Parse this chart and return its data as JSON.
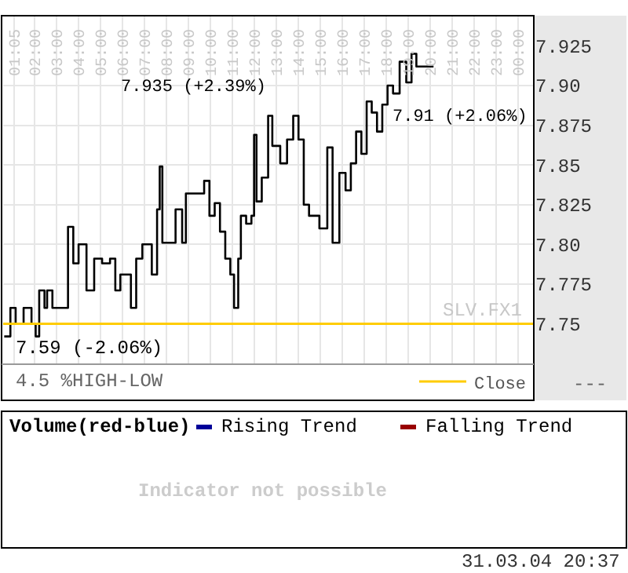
{
  "chart_data": [
    {
      "type": "step",
      "xlim": [
        0.57,
        24.7
      ],
      "ylim": [
        7.7245,
        7.944
      ],
      "xticks": [
        {
          "value": 1.0833,
          "label": "01:05"
        },
        {
          "value": 2,
          "label": "02:00"
        },
        {
          "value": 3,
          "label": "03:00"
        },
        {
          "value": 4,
          "label": "04:00"
        },
        {
          "value": 5,
          "label": "05:00"
        },
        {
          "value": 6,
          "label": "06:00"
        },
        {
          "value": 7,
          "label": "07:00"
        },
        {
          "value": 8,
          "label": "08:00"
        },
        {
          "value": 9,
          "label": "09:00"
        },
        {
          "value": 10,
          "label": "10:00"
        },
        {
          "value": 11,
          "label": "11:00"
        },
        {
          "value": 12,
          "label": "12:00"
        },
        {
          "value": 13,
          "label": "13:00"
        },
        {
          "value": 14,
          "label": "14:00"
        },
        {
          "value": 15,
          "label": "15:00"
        },
        {
          "value": 16,
          "label": "16:00"
        },
        {
          "value": 17,
          "label": "17:00"
        },
        {
          "value": 18,
          "label": "18:00"
        },
        {
          "value": 19,
          "label": "19:00"
        },
        {
          "value": 20,
          "label": "20:00"
        },
        {
          "value": 21,
          "label": "21:00"
        },
        {
          "value": 22,
          "label": "22:00"
        },
        {
          "value": 23,
          "label": "23:00"
        },
        {
          "value": 24,
          "label": "00:00"
        }
      ],
      "yticks": [
        7.75,
        7.775,
        {
          "value": 7.8,
          "label": "7.80"
        },
        7.825,
        7.85,
        7.875,
        {
          "value": 7.9,
          "label": "7.90"
        },
        7.925
      ],
      "grid": true,
      "legend": "bottom right",
      "line_style": "solid",
      "marker": "none",
      "series": [
        {
          "type": "step",
          "color": "#000000",
          "x": [
            0.62,
            0.9,
            1.14,
            1.5,
            1.86,
            2.05,
            2.21,
            2.45,
            2.57,
            2.81,
            3.33,
            3.52,
            3.76,
            4.0,
            4.36,
            4.71,
            5.07,
            5.43,
            5.67,
            5.9,
            6.38,
            6.62,
            6.9,
            7.33,
            7.57,
            7.69,
            7.81,
            8.29,
            8.41,
            8.71,
            8.88,
            9.59,
            9.71,
            9.95,
            10.19,
            10.43,
            10.67,
            10.9,
            11.07,
            11.26,
            11.38,
            11.62,
            11.86,
            11.98,
            12.09,
            12.33,
            12.62,
            12.81,
            13.17,
            13.48,
            13.76,
            14.0,
            14.24,
            14.48,
            14.95,
            15.31,
            15.55,
            15.86,
            16.14,
            16.38,
            16.62,
            16.86,
            17.1,
            17.33,
            17.57,
            17.81,
            18.05,
            18.3,
            18.6,
            18.9,
            19.14,
            19.36,
            20.14
          ],
          "values": [
            7.742,
            7.76,
            7.75,
            7.76,
            7.75,
            7.742,
            7.771,
            7.76,
            7.771,
            7.76,
            7.76,
            7.811,
            7.788,
            7.8,
            7.771,
            7.791,
            7.788,
            7.791,
            7.771,
            7.781,
            7.76,
            7.791,
            7.8,
            7.781,
            7.822,
            7.849,
            7.801,
            7.801,
            7.822,
            7.801,
            7.832,
            7.832,
            7.84,
            7.818,
            7.826,
            7.808,
            7.791,
            7.781,
            7.76,
            7.791,
            7.818,
            7.813,
            7.818,
            7.869,
            7.827,
            7.842,
            7.881,
            7.862,
            7.851,
            7.866,
            7.881,
            7.866,
            7.825,
            7.818,
            7.81,
            7.861,
            7.801,
            7.845,
            7.834,
            7.851,
            7.871,
            7.857,
            7.89,
            7.883,
            7.871,
            7.888,
            7.9,
            7.895,
            7.915,
            7.902,
            7.92,
            7.912,
            7.912
          ]
        },
        {
          "type": "line",
          "name": "Close",
          "color": "#ffcc00",
          "x": [
            0.57,
            24.7
          ],
          "values": [
            7.75,
            7.75
          ]
        }
      ],
      "annotations": [
        "7.935 (+2.39%)",
        "7.91 (+2.06%)",
        "7.59 (-2.06%)",
        "SLV.FX1",
        "4.5 %HIGH-LOW",
        "---",
        "31.03.04 20:37"
      ]
    },
    {
      "type": "other",
      "title": "Volume(red-blue)",
      "series": [
        {
          "name": "Rising Trend",
          "color": "#000099"
        },
        {
          "name": "Falling Trend",
          "color": "#990000"
        }
      ],
      "annotations": [
        "Indicator not possible"
      ]
    }
  ]
}
